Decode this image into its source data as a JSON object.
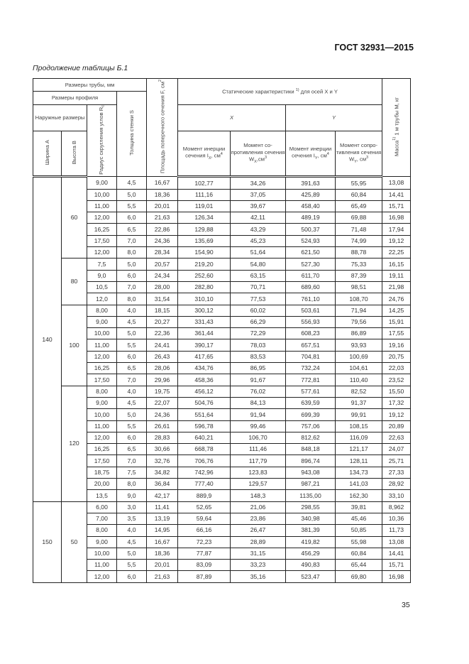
{
  "header": {
    "doc_code": "ГОСТ 32931—2015",
    "caption": "Продолжение таблицы Б.1"
  },
  "table": {
    "head": {
      "pipe_sizes": "Размеры трубы, мм",
      "profile_sizes": "Размеры профиля",
      "outer_sizes": "Наружные размеры",
      "width_a": "Ширина А",
      "height_b": "Высота В",
      "corner_radius": "Радиус скругления углов R",
      "corner_radius_sub": "c",
      "wall_thickness": "Толщина стенки S",
      "area": "Площадь поперечного сечения F, см",
      "area_sup": "2",
      "static": "Статические характеристики",
      "static_sup": "1)",
      "static_tail": "для осей X и Y",
      "axis_x": "X",
      "axis_y": "Y",
      "ix": "Момент инерции сечения I",
      "ix_sub": "X",
      "ix_unit": ", см",
      "ix_sup": "4",
      "wx": "Момент со-противления сечения W",
      "wx_sub": "X",
      "wx_unit": ",см",
      "wx_sup": "3",
      "iy": "Момент инерции сечения I",
      "iy_sub": "Y",
      "iy_unit": ", см",
      "iy_sup": "4",
      "wy": "Момент сопро-тивления сечения W",
      "wy_sub": "Y",
      "wy_unit": ", см",
      "wy_sup": "3",
      "mass": "Масса",
      "mass_sup": "1)",
      "mass_tail": " 1 м трубы М, кг"
    },
    "groups": [
      {
        "width": "140",
        "subgroups": [
          {
            "height": "60",
            "rows": [
              [
                "9,00",
                "4,5",
                "16,67",
                "102,77",
                "34,26",
                "391,63",
                "55,95",
                "13,08"
              ],
              [
                "10,00",
                "5,0",
                "18,36",
                "111,16",
                "37,05",
                "425,89",
                "60,84",
                "14,41"
              ],
              [
                "11,00",
                "5,5",
                "20,01",
                "119,01",
                "39,67",
                "458,40",
                "65,49",
                "15,71"
              ],
              [
                "12,00",
                "6,0",
                "21,63",
                "126,34",
                "42,11",
                "489,19",
                "69,88",
                "16,98"
              ],
              [
                "16,25",
                "6,5",
                "22,86",
                "129,88",
                "43,29",
                "500,37",
                "71,48",
                "17,94"
              ],
              [
                "17,50",
                "7,0",
                "24,36",
                "135,69",
                "45,23",
                "524,93",
                "74,99",
                "19,12"
              ],
              [
                "12,00",
                "8,0",
                "28,34",
                "154,90",
                "51,64",
                "621,50",
                "88,78",
                "22,25"
              ]
            ]
          },
          {
            "height": "80",
            "rows": [
              [
                "7,5",
                "5,0",
                "20,57",
                "219,20",
                "54,80",
                "527,30",
                "75,33",
                "16,15"
              ],
              [
                "9,0",
                "6,0",
                "24,34",
                "252,60",
                "63,15",
                "611,70",
                "87,39",
                "19,11"
              ],
              [
                "10,5",
                "7,0",
                "28,00",
                "282,80",
                "70,71",
                "689,60",
                "98,51",
                "21,98"
              ],
              [
                "12,0",
                "8,0",
                "31,54",
                "310,10",
                "77,53",
                "761,10",
                "108,70",
                "24,76"
              ]
            ]
          },
          {
            "height": "100",
            "rows": [
              [
                "8,00",
                "4,0",
                "18,15",
                "300,12",
                "60,02",
                "503,61",
                "71,94",
                "14,25"
              ],
              [
                "9,00",
                "4,5",
                "20,27",
                "331,43",
                "66,29",
                "556,93",
                "79,56",
                "15,91"
              ],
              [
                "10,00",
                "5,0",
                "22,36",
                "361,44",
                "72,29",
                "608,23",
                "86,89",
                "17,55"
              ],
              [
                "11,00",
                "5,5",
                "24,41",
                "390,17",
                "78,03",
                "657,51",
                "93,93",
                "19,16"
              ],
              [
                "12,00",
                "6,0",
                "26,43",
                "417,65",
                "83,53",
                "704,81",
                "100,69",
                "20,75"
              ],
              [
                "16,25",
                "6,5",
                "28,06",
                "434,76",
                "86,95",
                "732,24",
                "104,61",
                "22,03"
              ],
              [
                "17,50",
                "7,0",
                "29,96",
                "458,36",
                "91,67",
                "772,81",
                "110,40",
                "23,52"
              ]
            ]
          },
          {
            "height": "120",
            "rows": [
              [
                "8,00",
                "4,0",
                "19,75",
                "456,12",
                "76,02",
                "577,61",
                "82,52",
                "15,50"
              ],
              [
                "9,00",
                "4,5",
                "22,07",
                "504,76",
                "84,13",
                "639,59",
                "91,37",
                "17,32"
              ],
              [
                "10,00",
                "5,0",
                "24,36",
                "551,64",
                "91,94",
                "699,39",
                "99,91",
                "19,12"
              ],
              [
                "11,00",
                "5,5",
                "26,61",
                "596,78",
                "99,46",
                "757,06",
                "108,15",
                "20,89"
              ],
              [
                "12,00",
                "6,0",
                "28,83",
                "640,21",
                "106,70",
                "812,62",
                "116,09",
                "22,63"
              ],
              [
                "16,25",
                "6,5",
                "30,66",
                "668,78",
                "111,46",
                "848,18",
                "121,17",
                "24,07"
              ],
              [
                "17,50",
                "7,0",
                "32,76",
                "706,76",
                "117,79",
                "896,74",
                "128,11",
                "25,71"
              ],
              [
                "18,75",
                "7,5",
                "34,82",
                "742,96",
                "123,83",
                "943,08",
                "134,73",
                "27,33"
              ],
              [
                "20,00",
                "8,0",
                "36,84",
                "777,40",
                "129,57",
                "987,21",
                "141,03",
                "28,92"
              ],
              [
                "13,5",
                "9,0",
                "42,17",
                "889,9",
                "148,3",
                "1135,00",
                "162,30",
                "33,10"
              ]
            ]
          }
        ]
      },
      {
        "width": "150",
        "subgroups": [
          {
            "height": "50",
            "rows": [
              [
                "6,00",
                "3,0",
                "11,41",
                "52,65",
                "21,06",
                "298,55",
                "39,81",
                "8,962"
              ],
              [
                "7,00",
                "3,5",
                "13,19",
                "59,64",
                "23,86",
                "340,98",
                "45,46",
                "10,36"
              ],
              [
                "8,00",
                "4,0",
                "14,95",
                "66,16",
                "26,47",
                "381,39",
                "50,85",
                "11,73"
              ],
              [
                "9,00",
                "4,5",
                "16,67",
                "72,23",
                "28,89",
                "419,82",
                "55,98",
                "13,08"
              ],
              [
                "10,00",
                "5,0",
                "18,36",
                "77,87",
                "31,15",
                "456,29",
                "60,84",
                "14,41"
              ],
              [
                "11,00",
                "5,5",
                "20,01",
                "83,09",
                "33,23",
                "490,83",
                "65,44",
                "15,71"
              ],
              [
                "12,00",
                "6,0",
                "21,63",
                "87,89",
                "35,16",
                "523,47",
                "69,80",
                "16,98"
              ]
            ]
          }
        ]
      }
    ]
  },
  "footer": {
    "page_number": "35"
  }
}
